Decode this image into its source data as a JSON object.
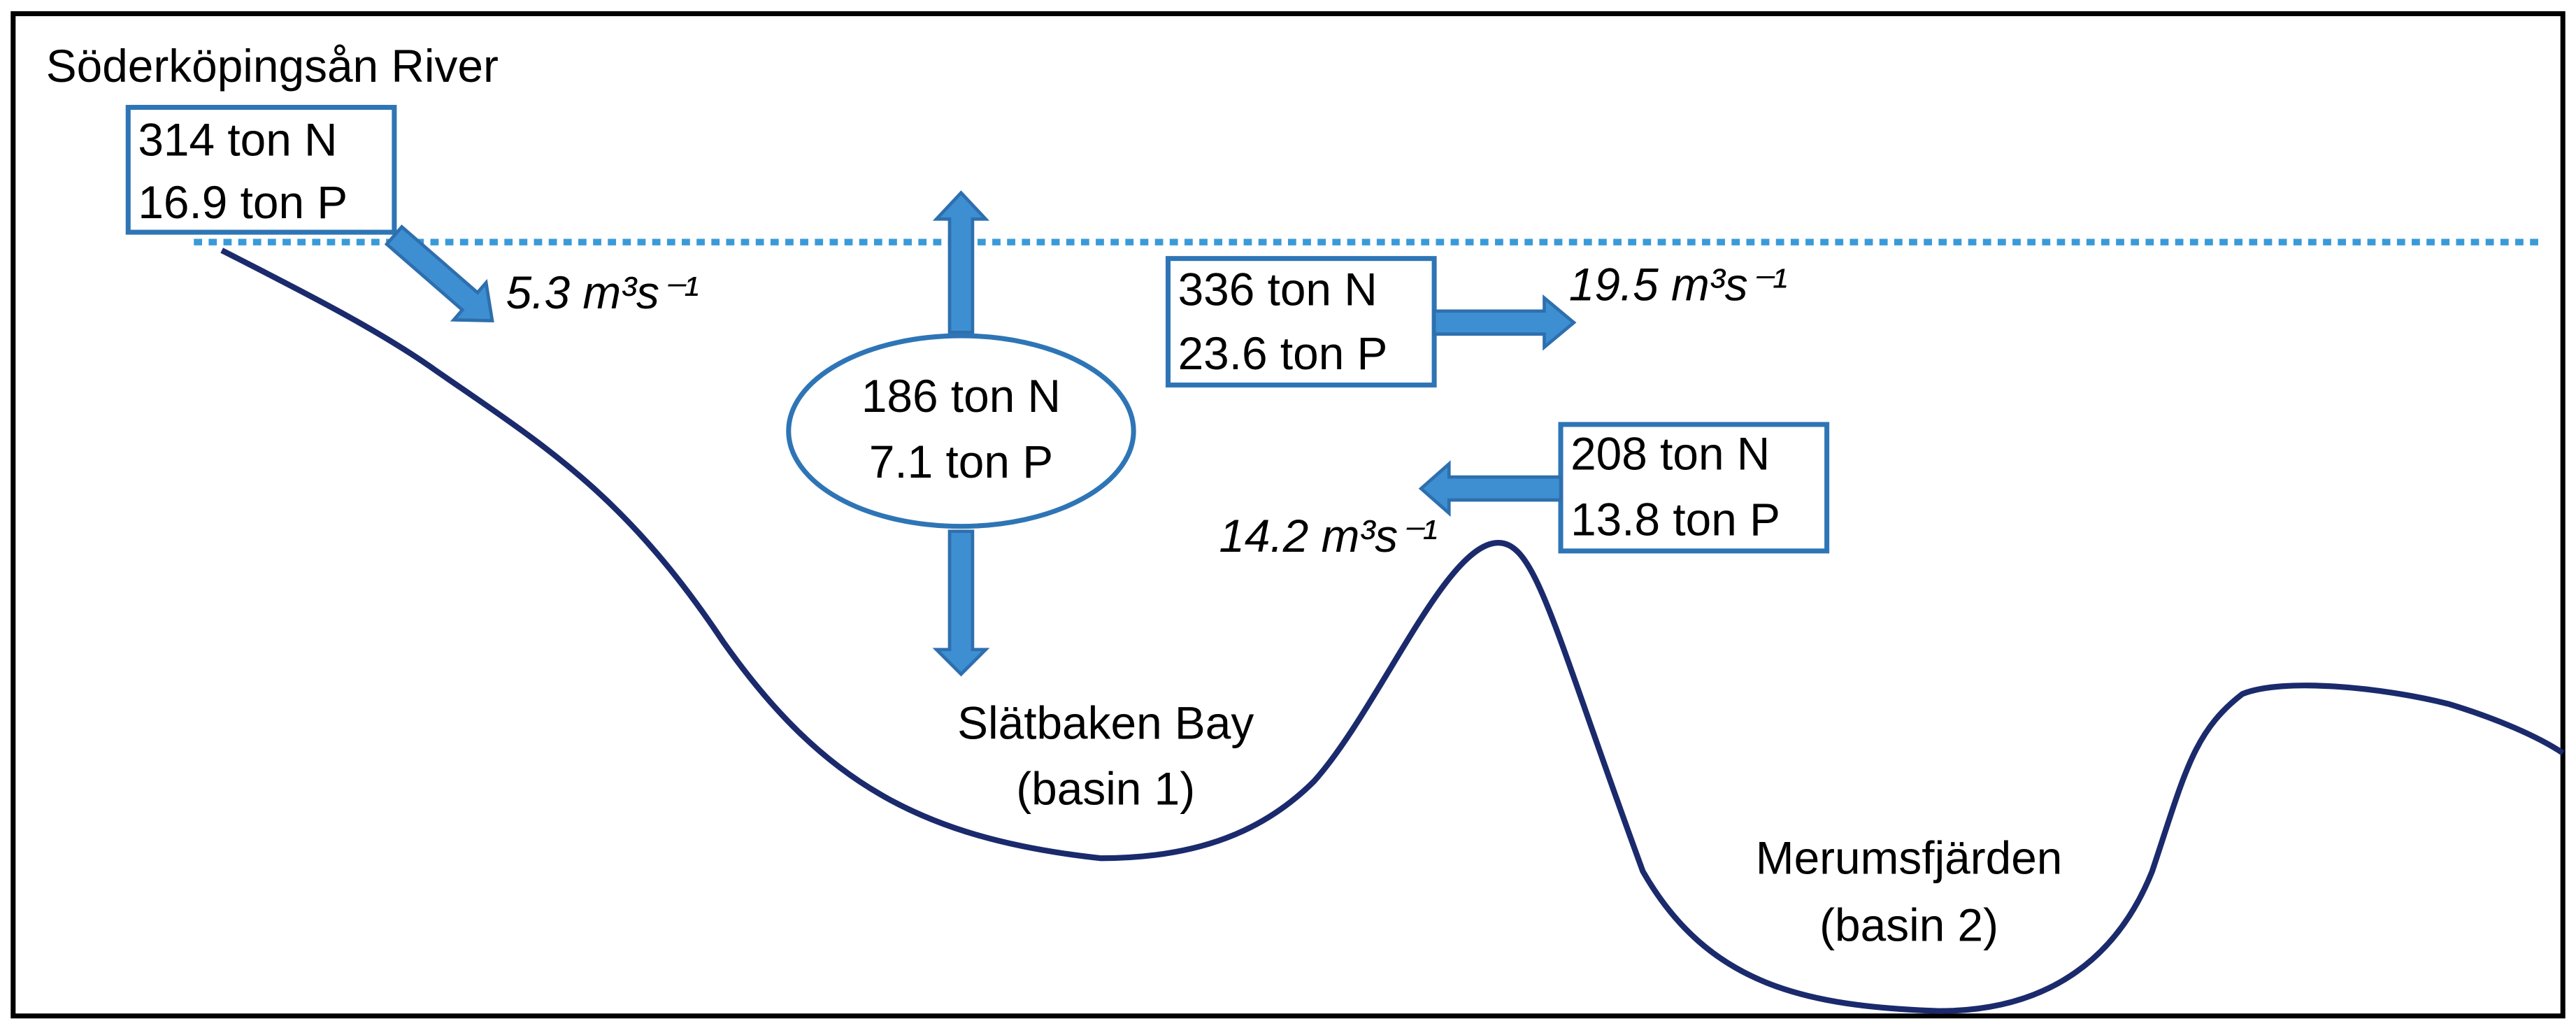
{
  "river": {
    "label": "Söderköpingsån River",
    "nitrogen": "314 ton N",
    "phosphorus": "16.9 ton P",
    "flow": "5.3 m³s⁻¹"
  },
  "exchange": {
    "nitrogen": "186 ton N",
    "phosphorus": "7.1 ton P"
  },
  "outflow": {
    "nitrogen": "336 ton N",
    "phosphorus": "23.6 ton P",
    "flow": "19.5 m³s⁻¹"
  },
  "inflow": {
    "nitrogen": "208 ton N",
    "phosphorus": "13.8 ton P",
    "flow": "14.2 m³s⁻¹"
  },
  "basins": [
    {
      "name": "Slätbaken Bay",
      "label": "(basin 1)"
    },
    {
      "name": "Merumsfjärden",
      "label": "(basin 2)"
    }
  ]
}
